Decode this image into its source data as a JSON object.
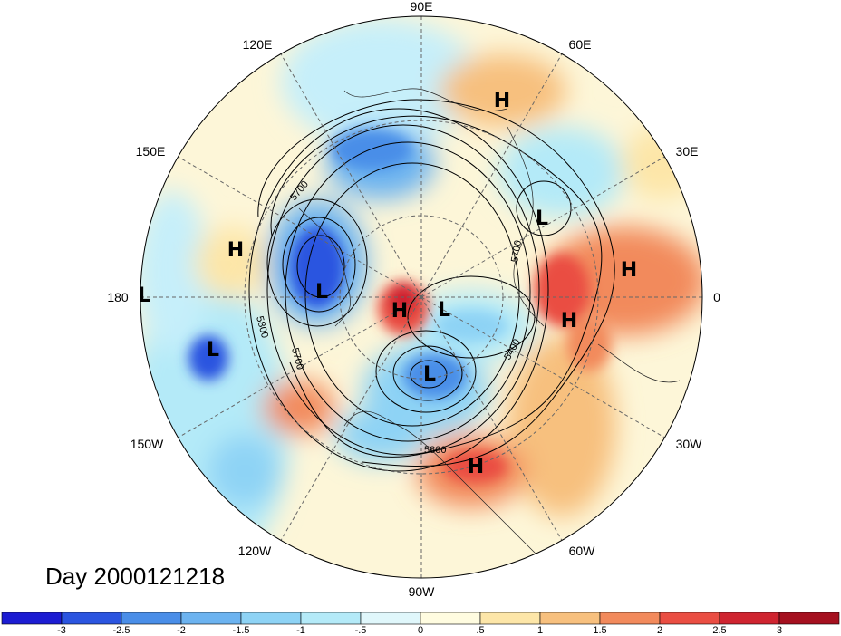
{
  "longitude_labels": [
    {
      "id": "lon-90e",
      "text": "90E"
    },
    {
      "id": "lon-60e",
      "text": "60E"
    },
    {
      "id": "lon-30e",
      "text": "30E"
    },
    {
      "id": "lon-0",
      "text": "0"
    },
    {
      "id": "lon-30w",
      "text": "30W"
    },
    {
      "id": "lon-60w",
      "text": "60W"
    },
    {
      "id": "lon-90w",
      "text": "90W"
    },
    {
      "id": "lon-120w",
      "text": "120W"
    },
    {
      "id": "lon-150w",
      "text": "150W"
    },
    {
      "id": "lon-180",
      "text": "180"
    },
    {
      "id": "lon-150e",
      "text": "150E"
    },
    {
      "id": "lon-120e",
      "text": "120E"
    }
  ],
  "pressure_centers": [
    {
      "id": "high-siberia",
      "text": "H"
    },
    {
      "id": "high-north-pacific",
      "text": "H"
    },
    {
      "id": "high-arctic",
      "text": "H"
    },
    {
      "id": "high-north-africa",
      "text": "H"
    },
    {
      "id": "high-western-europe",
      "text": "H"
    },
    {
      "id": "high-atlantic",
      "text": "H"
    },
    {
      "id": "low-europe",
      "text": "L"
    },
    {
      "id": "low-dateline",
      "text": "L"
    },
    {
      "id": "low-east-asia",
      "text": "L"
    },
    {
      "id": "low-arctic",
      "text": "L"
    },
    {
      "id": "low-hudson-bay",
      "text": "L"
    },
    {
      "id": "low-east-pacific",
      "text": "L"
    }
  ],
  "contour_labels": [
    {
      "id": "contour-5700-asia",
      "text": "5700"
    },
    {
      "id": "contour-5800-pacific",
      "text": "5800"
    },
    {
      "id": "contour-5700-pacific",
      "text": "5700"
    },
    {
      "id": "contour-5400",
      "text": "5400"
    },
    {
      "id": "contour-5800-atlantic",
      "text": "5800"
    },
    {
      "id": "contour-5700-europe",
      "text": "5700"
    }
  ],
  "title": "Day 2000121218",
  "colorbar": {
    "tick_labels": [
      "-3",
      "-2.5",
      "-2",
      "-1.5",
      "-1",
      "-.5",
      "0",
      ".5",
      "1",
      "1.5",
      "2",
      "2.5",
      "3"
    ],
    "colors": [
      "#1c1cd2",
      "#2b55e0",
      "#4a8ee8",
      "#6cb3f0",
      "#8ed3f5",
      "#b4eaf8",
      "#e0f7fb",
      "#fffce0",
      "#fde6a8",
      "#f7c07e",
      "#f28a5c",
      "#ea4e43",
      "#cf2430",
      "#a5101f"
    ]
  }
}
